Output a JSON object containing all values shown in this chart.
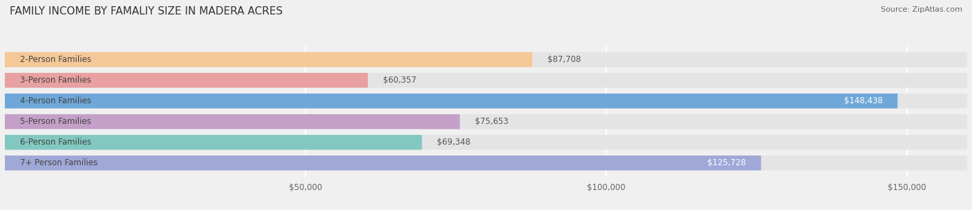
{
  "title": "FAMILY INCOME BY FAMALIY SIZE IN MADERA ACRES",
  "source": "Source: ZipAtlas.com",
  "categories": [
    "2-Person Families",
    "3-Person Families",
    "4-Person Families",
    "5-Person Families",
    "6-Person Families",
    "7+ Person Families"
  ],
  "values": [
    87708,
    60357,
    148438,
    75653,
    69348,
    125728
  ],
  "bar_colors": [
    "#f5c897",
    "#e8a0a0",
    "#6fa8d8",
    "#c4a0c8",
    "#82c8c0",
    "#a0a8d8"
  ],
  "bar_label_colors": [
    "#555555",
    "#555555",
    "#ffffff",
    "#555555",
    "#555555",
    "#ffffff"
  ],
  "label_inside": [
    false,
    false,
    true,
    false,
    false,
    true
  ],
  "value_labels": [
    "$87,708",
    "$60,357",
    "$148,438",
    "$75,653",
    "$69,348",
    "$125,728"
  ],
  "xlim": [
    0,
    160000
  ],
  "xticks": [
    0,
    50000,
    100000,
    150000
  ],
  "xtick_labels": [
    "",
    "$50,000",
    "$100,000",
    "$150,000"
  ],
  "background_color": "#f0f0f0",
  "bar_background": "#e4e4e4",
  "grid_color": "#ffffff",
  "title_fontsize": 11,
  "label_fontsize": 8.5,
  "value_fontsize": 8.5,
  "tick_fontsize": 8.5
}
